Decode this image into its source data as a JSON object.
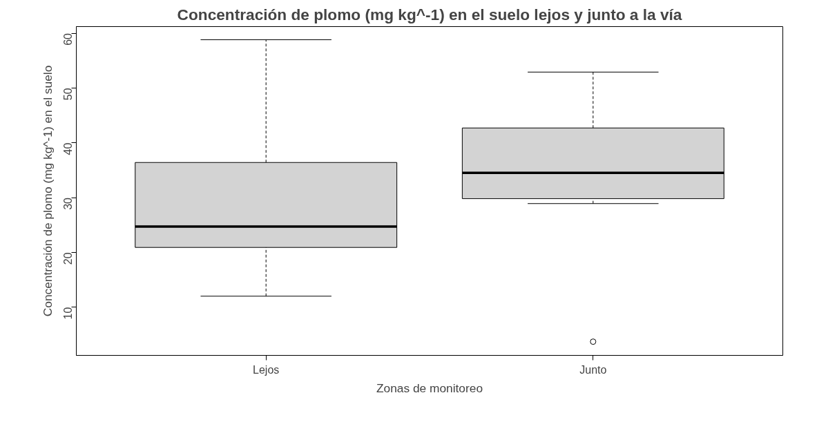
{
  "chart_data": {
    "type": "box",
    "title": "Concentración de plomo (mg kg^-1) en el suelo lejos y junto a la vía",
    "xlabel": "Zonas de monitoreo",
    "ylabel": "Concentración de plomo (mg kg^-1) en el suelo",
    "categories": [
      "Lejos",
      "Junto"
    ],
    "color": "#d3d3d3",
    "boxes": [
      {
        "low": 12,
        "q1": 20.9,
        "median": 24.7,
        "q3": 36.4,
        "high": 58.8
      },
      {
        "low": 28.9,
        "q1": 29.8,
        "median": 34.5,
        "q3": 42.7,
        "high": 52.9,
        "outliers": [
          3.7
        ]
      }
    ],
    "ylim": [
      1.2,
      61.2
    ],
    "yticks": [
      10,
      20,
      30,
      40,
      50,
      60
    ],
    "grid": false
  }
}
